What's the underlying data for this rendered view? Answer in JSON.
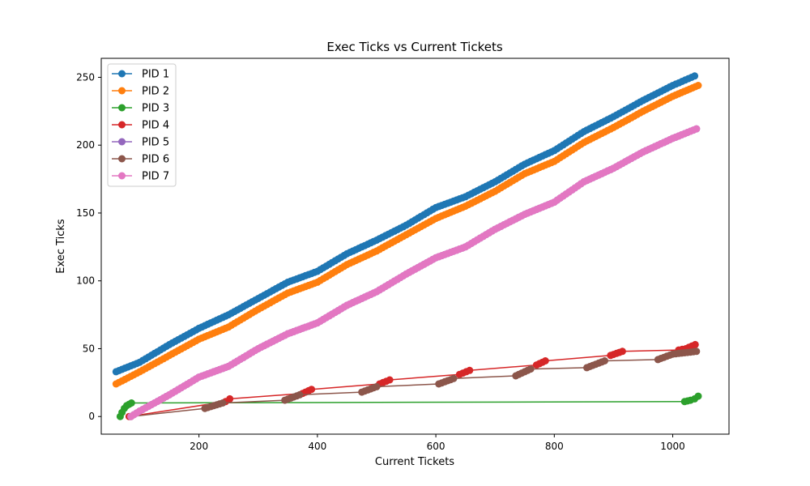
{
  "chart_data": {
    "type": "line",
    "title": "Exec Ticks vs Current Tickets",
    "xlabel": "Current Tickets",
    "ylabel": "Exec Ticks",
    "xlim": [
      35,
      1095
    ],
    "ylim": [
      -13,
      264
    ],
    "xticks": [
      200,
      400,
      600,
      800,
      1000
    ],
    "yticks": [
      0,
      50,
      100,
      150,
      200,
      250
    ],
    "grid": false,
    "legend_position": "top-left",
    "series": [
      {
        "name": "PID 1",
        "color": "#1f77b4",
        "x": [
          60,
          100,
          150,
          200,
          250,
          300,
          350,
          400,
          450,
          500,
          550,
          600,
          650,
          700,
          750,
          800,
          850,
          900,
          950,
          1000,
          1037
        ],
        "y": [
          33,
          40,
          53,
          65,
          75,
          87,
          99,
          107,
          120,
          130,
          141,
          154,
          162,
          173,
          186,
          196,
          210,
          221,
          233,
          244,
          251
        ]
      },
      {
        "name": "PID 2",
        "color": "#ff7f0e",
        "x": [
          60,
          100,
          150,
          200,
          250,
          300,
          350,
          400,
          450,
          500,
          550,
          600,
          650,
          700,
          750,
          800,
          850,
          900,
          950,
          1000,
          1043
        ],
        "y": [
          24,
          33,
          45,
          57,
          66,
          79,
          91,
          99,
          112,
          122,
          134,
          146,
          155,
          166,
          179,
          188,
          202,
          213,
          225,
          236,
          244
        ]
      },
      {
        "name": "PID 3",
        "color": "#2ca02c",
        "x": [
          67,
          70,
          74,
          78,
          82,
          86,
          1020,
          1030,
          1037,
          1043
        ],
        "y": [
          0,
          3,
          6,
          8,
          9,
          10,
          11,
          12,
          13,
          15
        ]
      },
      {
        "name": "PID 4",
        "color": "#d62728",
        "x": [
          82,
          245,
          252,
          375,
          390,
          505,
          522,
          640,
          657,
          770,
          785,
          895,
          915,
          1010,
          1022,
          1038
        ],
        "y": [
          0,
          11,
          13,
          17,
          20,
          24,
          27,
          31,
          34,
          38,
          41,
          45,
          48,
          49,
          50,
          53
        ]
      },
      {
        "name": "PID 5",
        "color": "#9467bd",
        "x": [
          85,
          100,
          150,
          200,
          250,
          300,
          350,
          400,
          450,
          500,
          550,
          600,
          650,
          700,
          750,
          800,
          850,
          900,
          950,
          1000,
          1040
        ],
        "y": [
          0,
          4,
          16,
          29,
          37,
          50,
          61,
          69,
          82,
          92,
          105,
          117,
          125,
          138,
          149,
          158,
          173,
          183,
          195,
          205,
          212
        ]
      },
      {
        "name": "PID 6",
        "color": "#8c564b",
        "x": [
          85,
          210,
          240,
          345,
          370,
          475,
          500,
          605,
          630,
          735,
          760,
          855,
          885,
          975,
          1000,
          1040
        ],
        "y": [
          0,
          6,
          10,
          12,
          16,
          18,
          22,
          24,
          28,
          30,
          35,
          36,
          41,
          42,
          46,
          48
        ]
      },
      {
        "name": "PID 7",
        "color": "#e377c2",
        "x": [
          85,
          100,
          150,
          200,
          250,
          300,
          350,
          400,
          450,
          500,
          550,
          600,
          650,
          700,
          750,
          800,
          850,
          900,
          950,
          1000,
          1040
        ],
        "y": [
          0,
          4,
          16,
          29,
          37,
          50,
          61,
          69,
          82,
          92,
          105,
          117,
          125,
          138,
          149,
          158,
          173,
          183,
          195,
          205,
          212
        ]
      }
    ]
  }
}
